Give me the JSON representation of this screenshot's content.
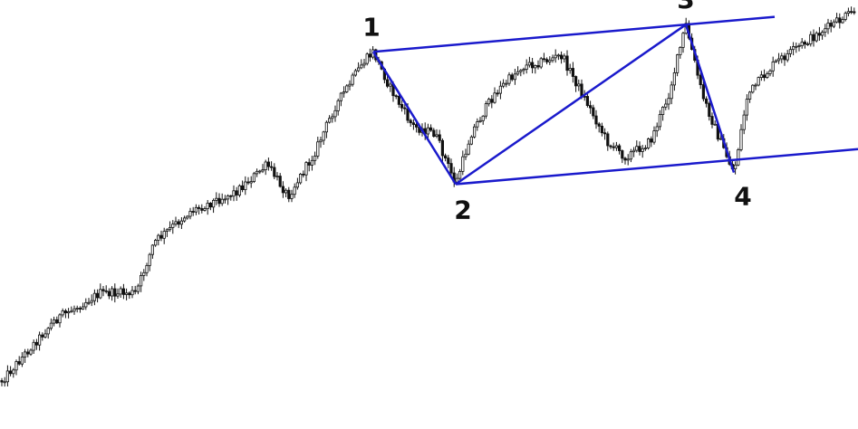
{
  "chart_data": {
    "type": "candlestick",
    "title": "",
    "xlabel": "",
    "ylabel": "",
    "axes_visible": false,
    "grid": false,
    "candle_color": "#111111",
    "overlay_color": "#1a1acc",
    "price_path": [
      [
        0,
        0.04
      ],
      [
        60,
        0.2
      ],
      [
        110,
        0.27
      ],
      [
        150,
        0.27
      ],
      [
        170,
        0.4
      ],
      [
        210,
        0.48
      ],
      [
        260,
        0.53
      ],
      [
        295,
        0.6
      ],
      [
        318,
        0.52
      ],
      [
        345,
        0.62
      ],
      [
        370,
        0.75
      ],
      [
        400,
        0.86
      ],
      [
        412,
        0.89
      ],
      [
        430,
        0.8
      ],
      [
        455,
        0.7
      ],
      [
        480,
        0.68
      ],
      [
        503,
        0.55
      ],
      [
        520,
        0.68
      ],
      [
        545,
        0.78
      ],
      [
        575,
        0.85
      ],
      [
        620,
        0.88
      ],
      [
        650,
        0.75
      ],
      [
        670,
        0.66
      ],
      [
        690,
        0.62
      ],
      [
        718,
        0.66
      ],
      [
        738,
        0.78
      ],
      [
        757,
        0.96
      ],
      [
        775,
        0.78
      ],
      [
        795,
        0.66
      ],
      [
        810,
        0.58
      ],
      [
        825,
        0.78
      ],
      [
        855,
        0.86
      ],
      [
        880,
        0.9
      ],
      [
        905,
        0.94
      ],
      [
        947,
        1.0
      ]
    ],
    "points": [
      {
        "label": "1",
        "x": 412,
        "y": 0.89
      },
      {
        "label": "2",
        "x": 503,
        "y": 0.55
      },
      {
        "label": "3",
        "x": 757,
        "y": 0.96
      },
      {
        "label": "4",
        "x": 810,
        "y": 0.58
      }
    ],
    "trendlines": [
      {
        "name": "upper-channel-line",
        "from": [
          412,
          0.89
        ],
        "to": [
          855,
          0.98
        ]
      },
      {
        "name": "lower-channel-line",
        "from": [
          503,
          0.55
        ],
        "to": [
          947,
          0.64
        ]
      },
      {
        "name": "wave-1-2",
        "from": [
          412,
          0.89
        ],
        "to": [
          503,
          0.55
        ]
      },
      {
        "name": "wave-2-3",
        "from": [
          503,
          0.55
        ],
        "to": [
          757,
          0.96
        ]
      },
      {
        "name": "wave-3-4",
        "from": [
          757,
          0.96
        ],
        "to": [
          810,
          0.58
        ]
      }
    ]
  }
}
